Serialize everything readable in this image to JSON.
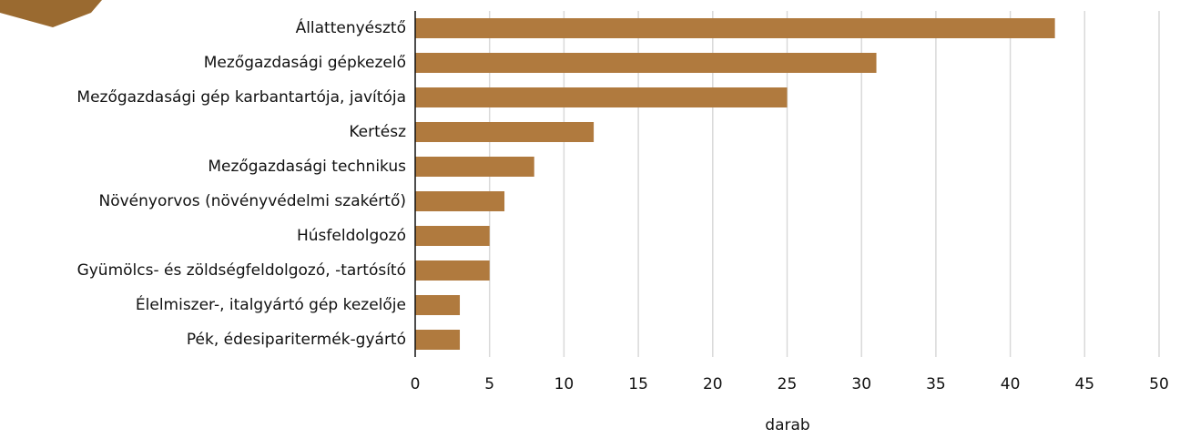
{
  "chart_data": {
    "type": "barh",
    "categories": [
      "Állattenyésztő",
      "Mezőgazdasági gépkezelő",
      "Mezőgazdasági gép karbantartója, javítója",
      "Kertész",
      "Mezőgazdasági technikus",
      "Növényorvos (növényvédelmi szakértő)",
      "Húsfeldolgozó",
      "Gyümölcs- és zöldségfeldolgozó, -tartósító",
      "Élelmiszer-, italgyártó gép kezelője",
      "Pék, édesiparitermék-gyártó"
    ],
    "values": [
      43,
      31,
      25,
      12,
      8,
      6,
      5,
      5,
      3,
      3
    ],
    "color": "#b07a3e",
    "xlabel": "darab",
    "xlim": [
      0,
      50
    ],
    "xticks": [
      0,
      5,
      10,
      15,
      20,
      25,
      30,
      35,
      40,
      45,
      50
    ],
    "grid": true
  }
}
